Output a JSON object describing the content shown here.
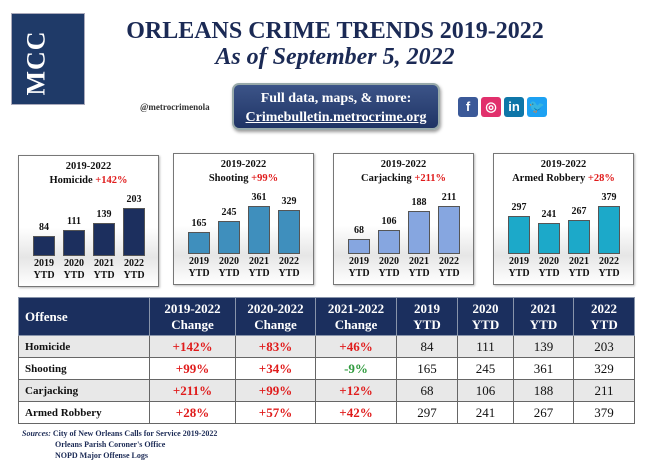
{
  "logo_text": "MCC",
  "title": "ORLEANS CRIME TRENDS 2019-2022",
  "subtitle": "As of September 5, 2022",
  "handle": "@metrocrimenola",
  "cta": {
    "line1": "Full data, maps, & more:",
    "link": "Crimebulletin.metrocrime.org"
  },
  "social": [
    {
      "icon": "facebook-icon",
      "glyph": "f",
      "color": "#3b5998"
    },
    {
      "icon": "instagram-icon",
      "glyph": "◎",
      "color": "#e1306c"
    },
    {
      "icon": "linkedin-icon",
      "glyph": "in",
      "color": "#0e76a8"
    },
    {
      "icon": "twitter-icon",
      "glyph": "🐦",
      "color": "#1da1f2"
    }
  ],
  "chart_data": [
    {
      "type": "bar",
      "period": "2019-2022",
      "title": "Homicide",
      "change": "+142%",
      "categories": [
        "2019 YTD",
        "2020 YTD",
        "2021 YTD",
        "2022 YTD"
      ],
      "values": [
        84,
        111,
        139,
        203
      ],
      "color": "#1c2f5e"
    },
    {
      "type": "bar",
      "period": "2019-2022",
      "title": "Shooting",
      "change": "+99%",
      "categories": [
        "2019 YTD",
        "2020 YTD",
        "2021 YTD",
        "2022 YTD"
      ],
      "values": [
        165,
        245,
        361,
        329
      ],
      "color": "#3f8fbd"
    },
    {
      "type": "bar",
      "period": "2019-2022",
      "title": "Carjacking",
      "change": "+211%",
      "categories": [
        "2019 YTD",
        "2020 YTD",
        "2021 YTD",
        "2022 YTD"
      ],
      "values": [
        68,
        106,
        188,
        211
      ],
      "color": "#86a6e0"
    },
    {
      "type": "bar",
      "period": "2019-2022",
      "title": "Armed Robbery",
      "change": "+28%",
      "categories": [
        "2019 YTD",
        "2020 YTD",
        "2021 YTD",
        "2022 YTD"
      ],
      "values": [
        297,
        241,
        267,
        379
      ],
      "color": "#1ca9c9"
    }
  ],
  "table": {
    "headers": [
      [
        "Offense"
      ],
      [
        "2019-2022",
        "Change"
      ],
      [
        "2020-2022",
        "Change"
      ],
      [
        "2021-2022",
        "Change"
      ],
      [
        "2019",
        "YTD"
      ],
      [
        "2020",
        "YTD"
      ],
      [
        "2021",
        "YTD"
      ],
      [
        "2022",
        "YTD"
      ]
    ],
    "rows": [
      [
        "Homicide",
        "+142%",
        "+83%",
        "+46%",
        "84",
        "111",
        "139",
        "203"
      ],
      [
        "Shooting",
        "+99%",
        "+34%",
        "-9%",
        "165",
        "245",
        "361",
        "329"
      ],
      [
        "Carjacking",
        "+211%",
        "+99%",
        "+12%",
        "68",
        "106",
        "188",
        "211"
      ],
      [
        "Armed Robbery",
        "+28%",
        "+57%",
        "+42%",
        "297",
        "241",
        "267",
        "379"
      ]
    ]
  },
  "sources": {
    "label": "Sources:",
    "items": [
      "City of New Orleans Calls for Service 2019-2022",
      "Orleans Parish Coroner's Office",
      "NOPD Major Offense Logs"
    ]
  }
}
